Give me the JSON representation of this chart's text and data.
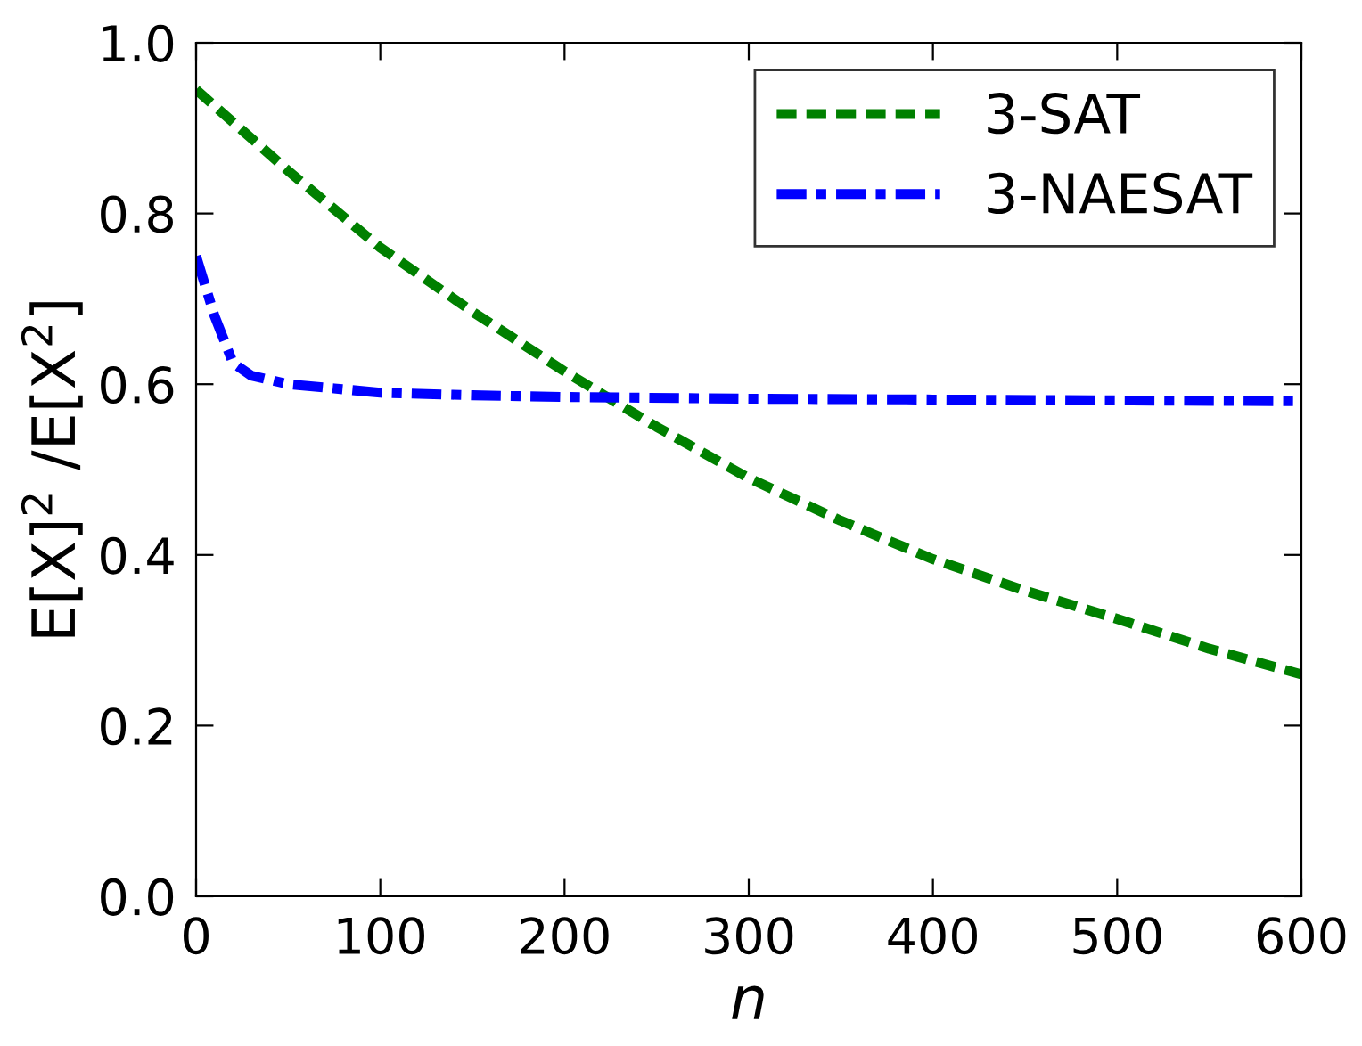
{
  "chart_data": {
    "type": "line",
    "xlabel": "n",
    "ylabel": "E[X]$^{2}$ /E[X$^{2}$]",
    "xlim": [
      0,
      600
    ],
    "xticks": [
      0,
      100,
      200,
      300,
      400,
      500,
      600
    ],
    "ylim": [
      0,
      1.0
    ],
    "yticks": [
      {
        "value": 0,
        "label": "0.0"
      },
      0.2,
      0.4,
      0.6,
      0.8,
      {
        "value": 1.0,
        "label": "1.0"
      }
    ],
    "grid": false,
    "legend": "top right",
    "marker": "none",
    "series": [
      {
        "name": "3-SAT",
        "color": "#008000",
        "line_style": "dashed",
        "x": [
          0,
          50,
          100,
          150,
          200,
          250,
          300,
          350,
          400,
          450,
          500,
          550,
          600
        ],
        "values": [
          0.945,
          0.85,
          0.76,
          0.685,
          0.615,
          0.55,
          0.49,
          0.44,
          0.395,
          0.358,
          0.325,
          0.29,
          0.26
        ]
      },
      {
        "name": "3-NAESAT",
        "color": "#0000ff",
        "line_style": "dashdot",
        "x": [
          0,
          10,
          20,
          30,
          50,
          75,
          100,
          150,
          200,
          300,
          400,
          500,
          600
        ],
        "values": [
          0.75,
          0.68,
          0.625,
          0.61,
          0.6,
          0.595,
          0.59,
          0.587,
          0.585,
          0.583,
          0.582,
          0.581,
          0.58
        ]
      }
    ]
  }
}
